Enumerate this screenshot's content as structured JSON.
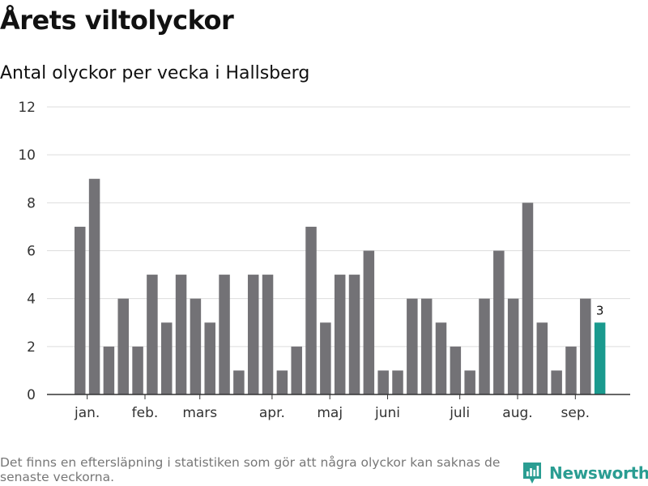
{
  "title": "Årets viltolyckor",
  "subtitle": "Antal olyckor per vecka i Hallsberg",
  "footnote": "Det finns en eftersläpning i statistiken som gör att några olyckor kan saknas de senaste veckorna.",
  "brand": {
    "name": "Newsworthy"
  },
  "colors": {
    "bar": "#737276",
    "highlight": "#1a9a8e",
    "grid": "#dddddd",
    "axis": "#333333",
    "brand": "#2a9d92"
  },
  "chart_data": {
    "type": "bar",
    "title": "Antal olyckor per vecka i Hallsberg",
    "xlabel": "",
    "ylabel": "",
    "ylim": [
      0,
      12
    ],
    "yticks": [
      0,
      2,
      4,
      6,
      8,
      10,
      12
    ],
    "weeks": [
      2,
      3,
      4,
      5,
      6,
      7,
      8,
      9,
      10,
      11,
      12,
      13,
      14,
      15,
      16,
      17,
      18,
      19,
      20,
      21,
      22,
      23,
      24,
      25,
      26,
      27,
      28,
      29,
      30,
      31,
      32,
      33,
      34,
      35,
      36,
      37,
      38
    ],
    "values": [
      7,
      9,
      2,
      4,
      2,
      5,
      3,
      5,
      4,
      3,
      5,
      1,
      5,
      5,
      1,
      2,
      7,
      3,
      5,
      5,
      6,
      1,
      1,
      4,
      4,
      3,
      2,
      1,
      4,
      6,
      4,
      8,
      3,
      1,
      2,
      4,
      3
    ],
    "month_labels": [
      {
        "label": "jan.",
        "week": 2.5
      },
      {
        "label": "feb.",
        "week": 6.5
      },
      {
        "label": "mars",
        "week": 10.3
      },
      {
        "label": "apr.",
        "week": 15.3
      },
      {
        "label": "maj",
        "week": 19.3
      },
      {
        "label": "juni",
        "week": 23.3
      },
      {
        "label": "juli",
        "week": 28.3
      },
      {
        "label": "aug.",
        "week": 32.3
      },
      {
        "label": "sep.",
        "week": 36.3
      }
    ],
    "highlight_last": true,
    "last_value_label": "3",
    "grid": true,
    "legend": "none"
  }
}
